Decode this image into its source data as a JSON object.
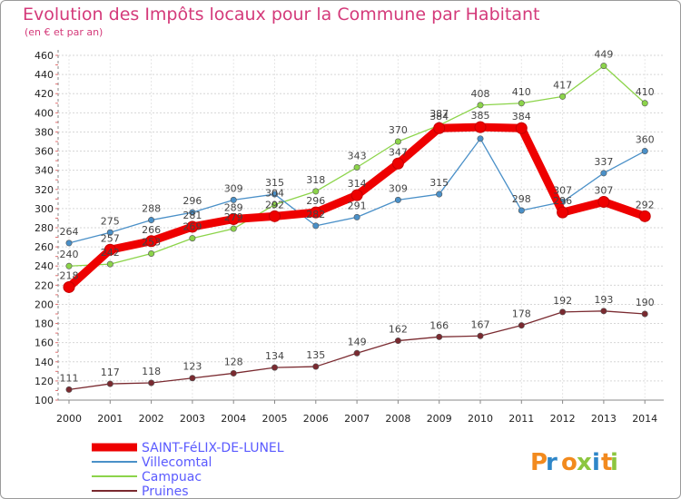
{
  "header": {
    "title": "Evolution des Impôts locaux pour la Commune par Habitant",
    "subtitle": "(en € et par an)"
  },
  "brand": {
    "letters": [
      "P",
      "r",
      "o",
      "x",
      "i",
      "t",
      "i"
    ],
    "colors": [
      "#f28a1e",
      "#2e86c8",
      "#f28a1e",
      "#8cc63f",
      "#2e86c8",
      "#f28a1e",
      "#8cc63f"
    ]
  },
  "chart_data": {
    "type": "line",
    "title": "Evolution des Impôts locaux pour la Commune par Habitant",
    "subtitle": "(en € et par an)",
    "xlabel": "",
    "ylabel": "",
    "x": [
      "2000",
      "2001",
      "2002",
      "2003",
      "2004",
      "2005",
      "2006",
      "2007",
      "2008",
      "2009",
      "2010",
      "2011",
      "2012",
      "2013",
      "2014"
    ],
    "ylim": [
      100,
      460
    ],
    "yticks": [
      100,
      120,
      140,
      160,
      180,
      200,
      220,
      240,
      260,
      280,
      300,
      320,
      340,
      360,
      380,
      400,
      420,
      440,
      460
    ],
    "grid": true,
    "legend_position": "bottom-left",
    "series": [
      {
        "name": "SAINT-FéLIX-DE-LUNEL",
        "color": "#ee0000",
        "values": [
          218,
          257,
          266,
          281,
          289,
          292,
          296,
          314,
          347,
          384,
          385,
          384,
          296,
          307,
          292
        ],
        "labels": [
          "218",
          "257",
          "266",
          "281",
          "289",
          "292",
          "296",
          "314",
          "347",
          "384",
          "385",
          "384",
          "296",
          "307",
          "292"
        ]
      },
      {
        "name": "Villecomtal",
        "color": "#4a90c8",
        "values": [
          264,
          275,
          288,
          296,
          309,
          315,
          282,
          291,
          309,
          315,
          373,
          298,
          307,
          337,
          360
        ],
        "labels": [
          "264",
          "275",
          "288",
          "296",
          "309",
          "315",
          "282",
          "291",
          "309",
          "315",
          "",
          "298",
          "307",
          "337",
          "360"
        ]
      },
      {
        "name": "Campuac",
        "color": "#8cd44a",
        "values": [
          240,
          242,
          253,
          269,
          279,
          304,
          318,
          343,
          370,
          387,
          408,
          410,
          417,
          449,
          410
        ],
        "labels": [
          "240",
          "242",
          "253",
          "269",
          "279",
          "304",
          "318",
          "343",
          "370",
          "387",
          "408",
          "410",
          "417",
          "449",
          "410"
        ]
      },
      {
        "name": "Pruines",
        "color": "#7a2a30",
        "values": [
          111,
          117,
          118,
          123,
          128,
          134,
          135,
          149,
          162,
          166,
          167,
          178,
          192,
          193,
          190
        ],
        "labels": [
          "111",
          "117",
          "118",
          "123",
          "128",
          "134",
          "135",
          "149",
          "162",
          "166",
          "167",
          "178",
          "192",
          "193",
          "190"
        ]
      }
    ]
  }
}
